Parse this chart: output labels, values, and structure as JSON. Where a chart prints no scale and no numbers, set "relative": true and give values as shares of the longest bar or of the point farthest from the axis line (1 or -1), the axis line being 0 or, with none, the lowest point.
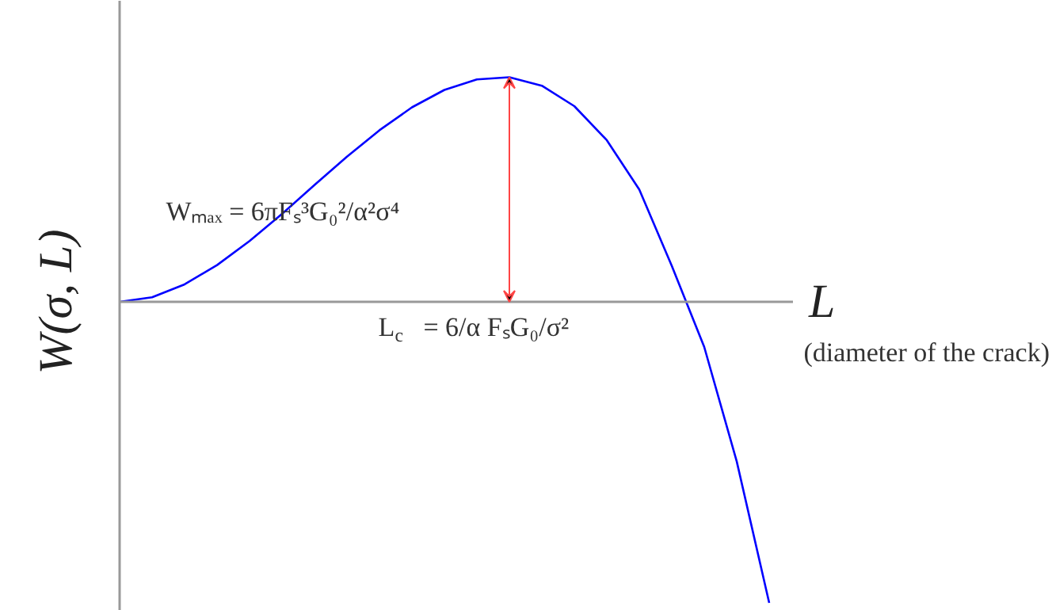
{
  "chart_data": {
    "type": "line",
    "relative": true,
    "xlabel": "L",
    "ylabel": "W(σ, L)",
    "categories": [
      null,
      null,
      null,
      null,
      null,
      null,
      null,
      null,
      null,
      null,
      null,
      null,
      null,
      null,
      null,
      null,
      null,
      null,
      null,
      null,
      null
    ],
    "color": "#0000ff",
    "values": [
      0,
      0.015,
      0.058,
      0.122,
      0.202,
      0.292,
      0.388,
      0.482,
      0.57,
      0.646,
      0.704,
      0.739,
      0.746,
      0.718,
      0.65,
      0.537,
      0.373,
      0.12,
      -0.15,
      -0.53,
      -1.0
    ],
    "annotations": [
      "Wₘₐₓ = 6πFₛ³G₀²/α²σ⁴",
      "L$_{c}$ = 6/α FₛG₀/σ²",
      "(diameter of the crack)"
    ]
  }
}
